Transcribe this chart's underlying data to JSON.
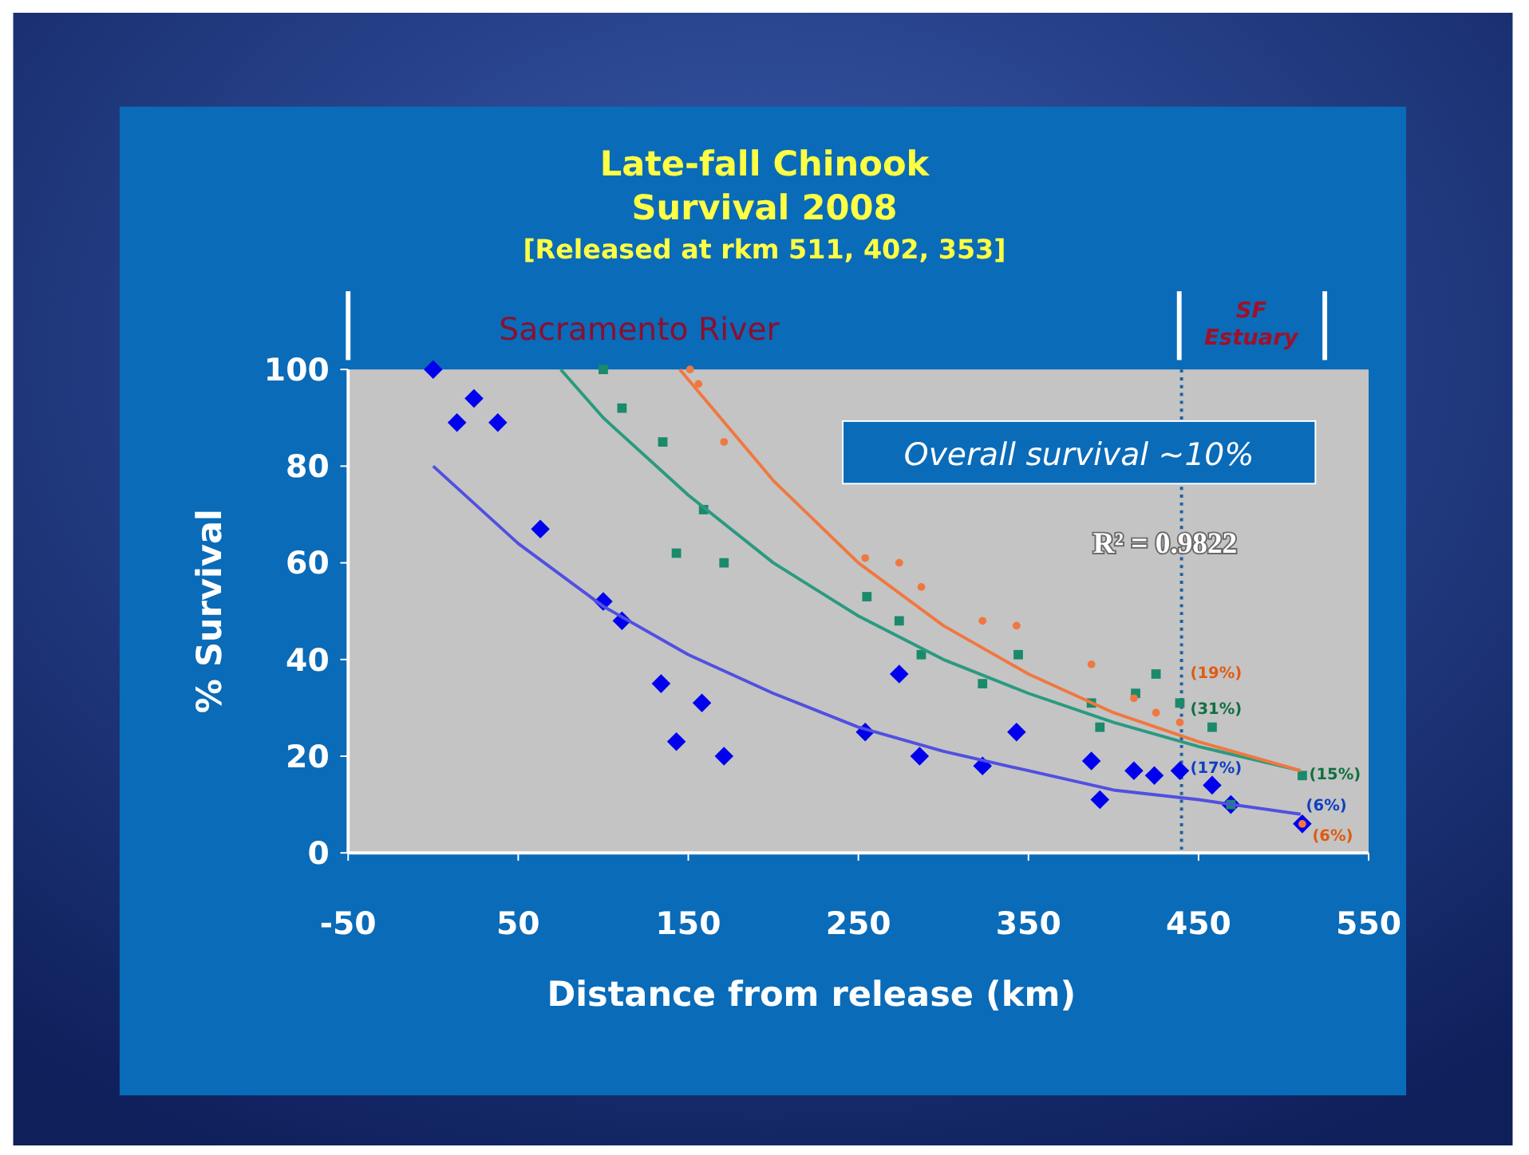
{
  "chart_data": {
    "type": "scatter",
    "title": "Late-fall Chinook\nSurvival 2008",
    "subtitle": "[Released at rkm 511, 402, 353]",
    "xlabel": "Distance from release (km)",
    "ylabel": "% Survival",
    "xlim": [
      -50,
      550
    ],
    "xticks": [
      -50,
      50,
      150,
      250,
      350,
      450,
      550
    ],
    "ylim": [
      0,
      100
    ],
    "yticks": [
      0,
      20,
      40,
      60,
      80,
      100
    ],
    "grid": false,
    "series": [
      {
        "color": "#0000ee",
        "marker": "diamond",
        "x": [
          0,
          14,
          24,
          38,
          63,
          100,
          111,
          134,
          143,
          158,
          171,
          254,
          274,
          286,
          323,
          343,
          387,
          392,
          412,
          424,
          439,
          458,
          469,
          511
        ],
        "values": [
          100,
          89,
          94,
          89,
          67,
          52,
          48,
          35,
          23,
          31,
          20,
          25,
          37,
          20,
          18,
          25,
          19,
          11,
          17,
          16,
          17,
          14,
          10,
          6
        ]
      },
      {
        "color": "#1a8a6a",
        "marker": "square",
        "x": [
          100,
          111,
          135,
          143,
          159,
          171,
          255,
          274,
          287,
          323,
          344,
          387,
          392,
          413,
          425,
          439,
          458,
          469,
          511
        ],
        "values": [
          100,
          92,
          85,
          62,
          71,
          60,
          53,
          48,
          41,
          35,
          41,
          31,
          26,
          33,
          37,
          31,
          26,
          10,
          16
        ]
      },
      {
        "color": "#f07840",
        "marker": "circle",
        "x": [
          151,
          156,
          171,
          254,
          274,
          287,
          323,
          343,
          387,
          412,
          425,
          439,
          511
        ],
        "values": [
          100,
          97,
          85,
          61,
          60,
          55,
          48,
          47,
          39,
          32,
          29,
          27,
          6
        ]
      },
      {
        "type": "line",
        "color": "#5050e0",
        "marker": "none",
        "x": [
          0,
          50,
          100,
          150,
          200,
          250,
          300,
          350,
          400,
          450,
          510
        ],
        "values": [
          80,
          64,
          51,
          41,
          33,
          26,
          21,
          17,
          13,
          11,
          8
        ]
      },
      {
        "type": "line",
        "color": "#2a9a80",
        "marker": "none",
        "x": [
          75,
          100,
          150,
          200,
          250,
          300,
          350,
          400,
          450,
          510
        ],
        "values": [
          100,
          90,
          74,
          60,
          49,
          40,
          33,
          27,
          22,
          17
        ]
      },
      {
        "type": "line",
        "color": "#f07840",
        "marker": "none",
        "x": [
          145,
          200,
          250,
          300,
          350,
          400,
          450,
          510
        ],
        "values": [
          100,
          77,
          60,
          47,
          37,
          29,
          23,
          17
        ]
      }
    ],
    "ref_lines": [
      {
        "axis": "x",
        "value": 440,
        "color": "#2060a0",
        "line_style": "dotted"
      }
    ],
    "annotations": [
      "Sacramento River",
      "SF Estuary",
      "Overall survival ~10%",
      "R² = 0.9822",
      "(19%)",
      "(31%)",
      "(17%)",
      "(15%)",
      "(6%)",
      "(6%)"
    ]
  }
}
